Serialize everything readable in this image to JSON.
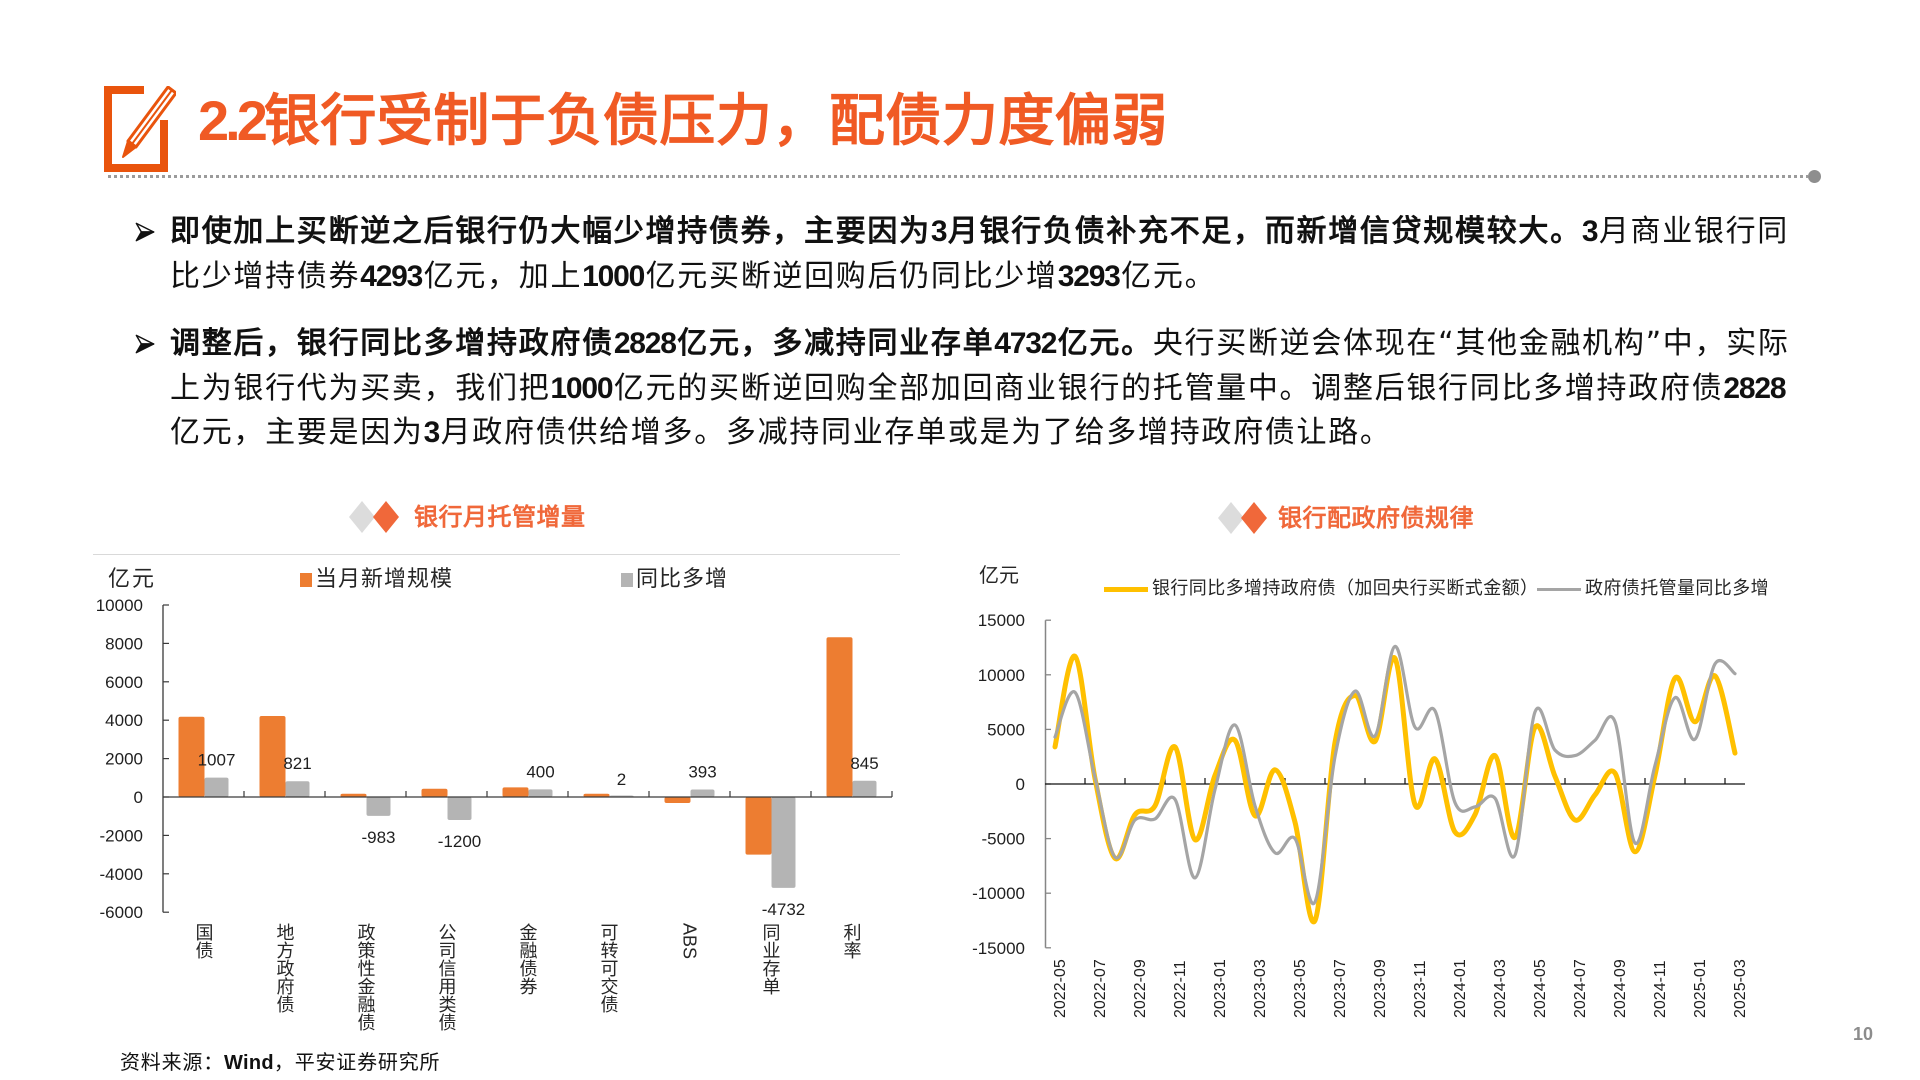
{
  "header": {
    "section_number": "2.2",
    "section_title": "银行受制于负债压力，配债力度偏弱"
  },
  "icons": {
    "title": "edit-square-icon",
    "bullet": "arrowhead-right-icon",
    "chart_title": "diamond-pair-icon",
    "divider_end": "dot-icon"
  },
  "theme": {
    "accent": "#F05A24",
    "chart_title": "#F0683A",
    "diamond_gray": "#DCDCDC"
  },
  "bullets": [
    {
      "lines": [
        [
          {
            "t": "即使加上买断逆之后银行仍大幅少增持债券，主要因为",
            "b": true
          },
          {
            "t": "3",
            "b": true
          },
          {
            "t": "月银行负债补充不足，而新增信贷规模较大。",
            "b": true
          },
          {
            "t": "3",
            "b": true
          },
          {
            "t": "月商业银行同",
            "b": false
          }
        ],
        [
          {
            "t": "比少增持债券",
            "b": false
          },
          {
            "t": "4293",
            "b": true
          },
          {
            "t": "亿元，加上",
            "b": false
          },
          {
            "t": "1000",
            "b": true
          },
          {
            "t": "亿元买断逆回购后仍同比少增",
            "b": false
          },
          {
            "t": "3293",
            "b": true
          },
          {
            "t": "亿元。",
            "b": false
          }
        ]
      ]
    },
    {
      "lines": [
        [
          {
            "t": "调整后，银行同比多增持政府债",
            "b": true
          },
          {
            "t": "2828",
            "b": true
          },
          {
            "t": "亿元，多减持同业存单",
            "b": true
          },
          {
            "t": "4732",
            "b": true
          },
          {
            "t": "亿元。",
            "b": true
          },
          {
            "t": "央行买断逆会体现在“其他金融机构”中，实际",
            "b": false
          }
        ],
        [
          {
            "t": "上为银行代为买卖，我们把",
            "b": false
          },
          {
            "t": "1000",
            "b": true
          },
          {
            "t": "亿元的买断逆回购全部加回商业银行的托管量中。调整后银行同比多增持政府债",
            "b": false
          },
          {
            "t": "2828",
            "b": true
          }
        ],
        [
          {
            "t": "亿元，主要是因为",
            "b": false
          },
          {
            "t": "3",
            "b": true
          },
          {
            "t": "月政府债供给增多。多减持同业存单或是为了给多增持政府债让路。",
            "b": false
          }
        ]
      ]
    }
  ],
  "chart_data": [
    {
      "type": "bar",
      "title": "银行月托管增量",
      "xlabel": "",
      "ylabel": "亿元",
      "categories": [
        "国债",
        "地方政府债",
        "政策性金融债",
        "公司信用类债",
        "金融债券",
        "可转可交债",
        "ABS",
        "同业存单",
        "利率"
      ],
      "series": [
        {
          "name": "当月新增规模",
          "color": "#ED7D31",
          "values": [
            4180,
            4220,
            170,
            430,
            500,
            170,
            -310,
            -3000,
            8320
          ],
          "data_labels": false
        },
        {
          "name": "同比多增",
          "color": "#B4B4B4",
          "values": [
            1007,
            821,
            -983,
            -1200,
            400,
            2,
            393,
            -4732,
            845
          ],
          "data_labels": true
        }
      ],
      "ylim": [
        -6000,
        10000
      ],
      "yticks": [
        10000,
        8000,
        6000,
        4000,
        2000,
        0,
        -2000,
        -4000,
        -6000
      ],
      "grid": false,
      "legend_position": "top"
    },
    {
      "type": "line",
      "title": "银行配政府债规律",
      "xlabel": "",
      "ylabel": "亿元",
      "x": [
        "2022-05",
        "2022-06",
        "2022-07",
        "2022-08",
        "2022-09",
        "2022-10",
        "2022-11",
        "2022-12",
        "2023-01",
        "2023-02",
        "2023-03",
        "2023-04",
        "2023-05",
        "2023-06",
        "2023-07",
        "2023-08",
        "2023-09",
        "2023-10",
        "2023-11",
        "2023-12",
        "2024-01",
        "2024-02",
        "2024-03",
        "2024-04",
        "2024-05",
        "2024-06",
        "2024-07",
        "2024-08",
        "2024-09",
        "2024-10",
        "2024-11",
        "2024-12",
        "2025-01",
        "2025-02",
        "2025-03"
      ],
      "xtick_labels": [
        "2022-05",
        "2022-07",
        "2022-09",
        "2022-11",
        "2023-01",
        "2023-03",
        "2023-05",
        "2023-07",
        "2023-09",
        "2023-11",
        "2024-01",
        "2024-03",
        "2024-05",
        "2024-07",
        "2024-09",
        "2024-11",
        "2025-01",
        "2025-03"
      ],
      "series": [
        {
          "name": "银行同比多增持政府债（加回央行买断式金额）",
          "color": "#FFC000",
          "values": [
            3400,
            11700,
            500,
            -6800,
            -2800,
            -2000,
            3400,
            -5100,
            800,
            4000,
            -2900,
            1300,
            -3500,
            -12500,
            3800,
            8100,
            3900,
            11500,
            -1900,
            2300,
            -4400,
            -2800,
            2600,
            -4900,
            5200,
            700,
            -3300,
            -1000,
            1000,
            -6200,
            800,
            9700,
            5700,
            9900,
            2828
          ]
        },
        {
          "name": "政府债托管量同比多增",
          "color": "#A5A5A5",
          "values": [
            4300,
            8400,
            600,
            -6700,
            -3300,
            -3200,
            -1400,
            -8600,
            -500,
            5400,
            -2000,
            -6300,
            -5000,
            -10800,
            2500,
            8500,
            4400,
            12600,
            5200,
            6700,
            -1700,
            -2100,
            -1300,
            -6500,
            6600,
            3100,
            2600,
            4000,
            5700,
            -5400,
            1700,
            7900,
            4100,
            11000,
            10100
          ]
        }
      ],
      "ylim": [
        -15000,
        15000
      ],
      "yticks": [
        15000,
        10000,
        5000,
        0,
        -5000,
        -10000,
        -15000
      ],
      "smooth": true,
      "grid": false,
      "legend_position": "top"
    }
  ],
  "footer": {
    "source_prefix": "资料来源：",
    "source_bold": "Wind",
    "source_suffix": "，平安证券研究所",
    "page_number": "10"
  }
}
